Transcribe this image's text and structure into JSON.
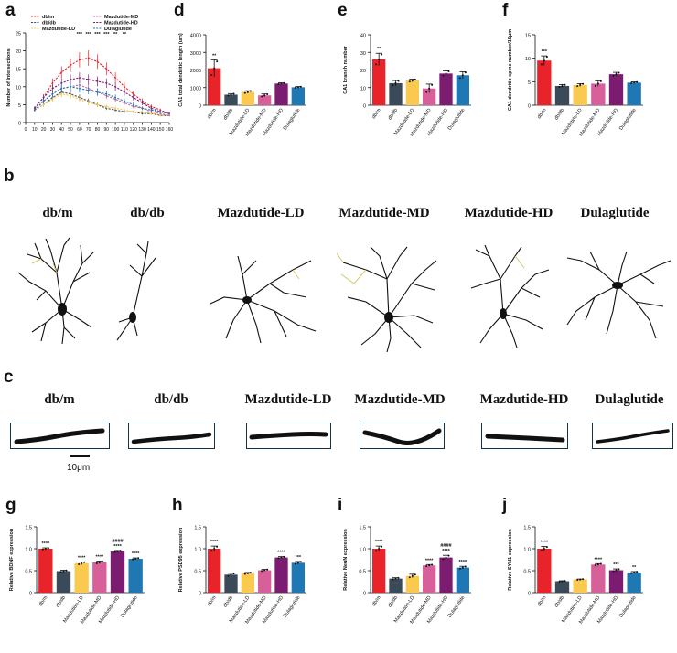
{
  "panels": {
    "a": "a",
    "b": "b",
    "c": "c",
    "d": "d",
    "e": "e",
    "f": "f",
    "g": "g",
    "h": "h",
    "i": "i",
    "j": "j"
  },
  "groups": [
    "db/m",
    "db/db",
    "Mazdutide-LD",
    "Mazdutide-MD",
    "Mazdutide-HD",
    "Dulaglutide"
  ],
  "image_labels_b": [
    "db/m",
    "db/db",
    "Mazdutide-LD",
    "Mazdutide-MD",
    "Mazdutide-HD",
    "Dulaglutide"
  ],
  "image_labels_c": [
    "db/m",
    "db/db",
    "Mazdutide-LD",
    "Mazdutide-MD",
    "Mazdutide-HD",
    "Dulaglutide"
  ],
  "scale_bar": "10μm",
  "colors": {
    "db/m": "#e8232a",
    "db/db": "#3b4a59",
    "Mazdutide-LD": "#f9c950",
    "Mazdutide-MD": "#d8609a",
    "Mazdutide-HD": "#7c1c70",
    "Dulaglutide": "#1f78b4"
  },
  "chart_data": [
    {
      "panel": "a",
      "type": "line",
      "ylabel": "Number of Intersections",
      "xlabel": "",
      "x": [
        10,
        20,
        30,
        40,
        50,
        60,
        70,
        80,
        90,
        100,
        110,
        120,
        130,
        140,
        150,
        160
      ],
      "xlim": [
        0,
        160
      ],
      "ylim": [
        0,
        25
      ],
      "yticks": [
        0,
        5,
        10,
        15,
        20,
        25
      ],
      "legend": "top",
      "legend_order": [
        "db/m",
        "Mazdutide-MD",
        "db/db",
        "Mazdutide-HD",
        "Mazdutide-LD",
        "Dulaglutide"
      ],
      "series": [
        {
          "name": "db/m",
          "values": [
            4,
            7,
            11,
            14,
            16,
            17.5,
            18,
            17,
            15,
            12.5,
            10,
            8,
            6,
            4.5,
            3.5,
            2.5
          ]
        },
        {
          "name": "db/db",
          "values": [
            3.5,
            5,
            7,
            8.5,
            8,
            7,
            6,
            5,
            4,
            3.5,
            3,
            3,
            2.5,
            2.5,
            2,
            2
          ]
        },
        {
          "name": "Mazdutide-LD",
          "values": [
            3.5,
            5,
            6.5,
            8,
            7.5,
            6.5,
            5.5,
            5,
            4.5,
            4,
            3.5,
            3,
            3,
            2.5,
            2,
            2
          ]
        },
        {
          "name": "Mazdutide-MD",
          "values": [
            3.5,
            6,
            8,
            9.5,
            10,
            10.5,
            9.5,
            8.5,
            7.5,
            6.5,
            5.5,
            4.5,
            4,
            3,
            2.5,
            2
          ]
        },
        {
          "name": "Mazdutide-HD",
          "values": [
            4,
            7,
            9.5,
            11,
            12,
            12.5,
            12,
            11.5,
            11,
            10,
            8.5,
            7,
            5.5,
            4,
            3,
            2.5
          ]
        },
        {
          "name": "Dulaglutide",
          "values": [
            3.5,
            6,
            8,
            9.5,
            10,
            9.5,
            9,
            8.5,
            8,
            7,
            6,
            5,
            4,
            3.5,
            3,
            2.5
          ]
        }
      ],
      "annotations": [
        "***",
        "***",
        "***",
        "***",
        "**",
        "**"
      ]
    },
    {
      "panel": "d",
      "type": "bar",
      "ylabel": "CA1 total dendritic length (um)",
      "categories": [
        "db/m",
        "db/db",
        "Mazdutide-LD",
        "Mazdutide-MD",
        "Mazdutide-HD",
        "Dulaglutide"
      ],
      "values": [
        2100,
        600,
        750,
        560,
        1230,
        1020
      ],
      "errors": [
        480,
        60,
        70,
        80,
        40,
        40
      ],
      "ylim": [
        0,
        4000
      ],
      "yticks": [
        0,
        1000,
        2000,
        3000,
        4000
      ],
      "stars": [
        "**",
        "",
        "",
        "",
        "",
        ""
      ]
    },
    {
      "panel": "e",
      "type": "bar",
      "ylabel": "CA1 branch number",
      "categories": [
        "db/m",
        "db/db",
        "Mazdutide-LD",
        "Mazdutide-MD",
        "Mazdutide-HD",
        "Dulaglutide"
      ],
      "values": [
        26,
        12.5,
        14,
        9.5,
        18,
        17
      ],
      "errors": [
        3.5,
        1.5,
        0.8,
        2.5,
        1.5,
        2
      ],
      "ylim": [
        0,
        40
      ],
      "yticks": [
        0,
        10,
        20,
        30,
        40
      ],
      "stars": [
        "**",
        "",
        "",
        "",
        "",
        ""
      ]
    },
    {
      "panel": "f",
      "type": "bar",
      "ylabel": "CA1 dendritic spine number/10μm",
      "categories": [
        "db/m",
        "db/db",
        "Mazdutide-LD",
        "Mazdutide-MD",
        "Mazdutide-HD",
        "Dulaglutide"
      ],
      "values": [
        9.5,
        4.1,
        4.3,
        4.6,
        6.6,
        4.8
      ],
      "errors": [
        1.0,
        0.3,
        0.3,
        0.6,
        0.4,
        0.15
      ],
      "ylim": [
        0,
        15
      ],
      "yticks": [
        0,
        5,
        10,
        15
      ],
      "stars": [
        "***",
        "",
        "",
        "",
        "",
        ""
      ]
    },
    {
      "panel": "g",
      "type": "bar",
      "ylabel": "Relative BDNF expression",
      "categories": [
        "db/m",
        "db/db",
        "Mazdutide-LD",
        "Mazdutide-MD",
        "Mazdutide-HD",
        "Dulaglutide"
      ],
      "values": [
        1.0,
        0.49,
        0.67,
        0.69,
        0.94,
        0.77
      ],
      "errors": [
        0.02,
        0.02,
        0.03,
        0.03,
        0.02,
        0.02
      ],
      "ylim": [
        0,
        1.5
      ],
      "yticks": [
        0,
        0.5,
        1.0,
        1.5
      ],
      "stars": [
        "****",
        "",
        "****",
        "****",
        "####\n****",
        "****"
      ]
    },
    {
      "panel": "h",
      "type": "bar",
      "ylabel": "Relative PSD95 expression",
      "categories": [
        "db/m",
        "db/db",
        "Mazdutide-LD",
        "Mazdutide-MD",
        "Mazdutide-HD",
        "Dulaglutide"
      ],
      "values": [
        1.0,
        0.41,
        0.44,
        0.51,
        0.8,
        0.68
      ],
      "errors": [
        0.06,
        0.03,
        0.02,
        0.02,
        0.02,
        0.03
      ],
      "ylim": [
        0,
        1.5
      ],
      "yticks": [
        0,
        0.5,
        1.0,
        1.5
      ],
      "stars": [
        "****",
        "",
        "",
        "",
        "****",
        "***"
      ]
    },
    {
      "panel": "i",
      "type": "bar",
      "ylabel": "Relative NeuN expression",
      "categories": [
        "db/m",
        "db/db",
        "Mazdutide-LD",
        "Mazdutide-MD",
        "Mazdutide-HD",
        "Dulaglutide"
      ],
      "values": [
        1.0,
        0.32,
        0.38,
        0.62,
        0.8,
        0.57
      ],
      "errors": [
        0.06,
        0.02,
        0.04,
        0.02,
        0.05,
        0.03
      ],
      "ylim": [
        0,
        1.5
      ],
      "yticks": [
        0,
        0.5,
        1.0,
        1.5
      ],
      "stars": [
        "****",
        "",
        "",
        "****",
        "####\n****",
        "****"
      ]
    },
    {
      "panel": "j",
      "type": "bar",
      "ylabel": "Relative SYN1 expression",
      "categories": [
        "db/m",
        "db/db",
        "Mazdutide-LD",
        "Mazdutide-MD",
        "Mazdutide-HD",
        "Dulaglutide"
      ],
      "values": [
        1.0,
        0.26,
        0.3,
        0.64,
        0.51,
        0.46
      ],
      "errors": [
        0.05,
        0.01,
        0.01,
        0.02,
        0.03,
        0.02
      ],
      "ylim": [
        0,
        1.5
      ],
      "yticks": [
        0,
        0.5,
        1.0,
        1.5
      ],
      "stars": [
        "****",
        "",
        "",
        "****",
        "***",
        "**"
      ]
    }
  ]
}
